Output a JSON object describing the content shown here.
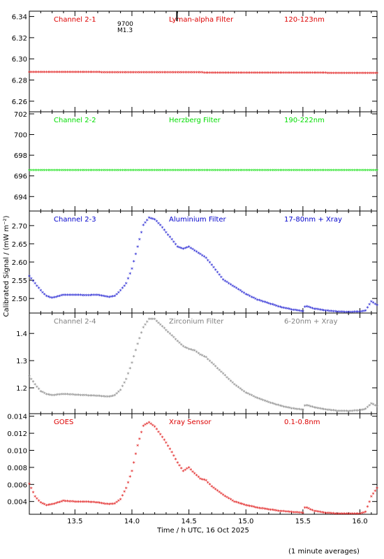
{
  "chart_data": {
    "type": "scatter",
    "xlabel": "Time / h UTC, 16 Oct 2025",
    "ylabel": "Calibrated Signal / (mW m⁻²)",
    "footnote": "(1 minute averages)",
    "xlim": [
      13.1,
      16.15
    ],
    "xticks": [
      13.5,
      14.0,
      14.5,
      15.0,
      15.5,
      16.0
    ],
    "xtick_labels": [
      "13.5",
      "14.0",
      "14.5",
      "15.0",
      "15.5",
      "16.0"
    ],
    "flare_marker": {
      "x": 14.15,
      "labels": [
        "9700",
        "M1.3"
      ]
    },
    "panels": [
      {
        "channel": "Channel 2-1",
        "filter": "Lyman-alpha Filter",
        "band": "120-123nm",
        "color": "#dd0000",
        "ylim": [
          6.25,
          6.345
        ],
        "yticks": [
          6.26,
          6.28,
          6.3,
          6.32,
          6.34
        ],
        "ytick_labels": [
          "6.26",
          "6.28",
          "6.30",
          "6.32",
          "6.34"
        ],
        "x": [
          13.1,
          13.5,
          14.0,
          14.5,
          15.0,
          15.5,
          16.0,
          16.15
        ],
        "y": [
          6.287,
          6.287,
          6.2865,
          6.2865,
          6.2863,
          6.2862,
          6.286,
          6.286
        ]
      },
      {
        "channel": "Channel 2-2",
        "filter": "Herzberg Filter",
        "band": "190-222nm",
        "color": "#00dd00",
        "ylim": [
          692.6,
          702.2
        ],
        "yticks": [
          694,
          696,
          698,
          700,
          702
        ],
        "ytick_labels": [
          "694",
          "696",
          "698",
          "700",
          "702"
        ],
        "x": [
          13.1,
          13.5,
          14.0,
          14.5,
          15.0,
          15.5,
          16.0,
          16.15
        ],
        "y": [
          696.5,
          696.5,
          696.5,
          696.5,
          696.5,
          696.5,
          696.5,
          696.5
        ]
      },
      {
        "channel": "Channel 2-3",
        "filter": "Aluminium Filter",
        "band": "17-80nm + Xray",
        "color": "#0000cc",
        "ylim": [
          2.46,
          2.74
        ],
        "yticks": [
          2.5,
          2.55,
          2.6,
          2.65,
          2.7
        ],
        "ytick_labels": [
          "2.50",
          "2.55",
          "2.60",
          "2.65",
          "2.70"
        ],
        "x": [
          13.1,
          13.15,
          13.2,
          13.25,
          13.3,
          13.4,
          13.5,
          13.6,
          13.7,
          13.8,
          13.85,
          13.9,
          13.95,
          14.0,
          14.05,
          14.1,
          14.15,
          14.2,
          14.25,
          14.3,
          14.35,
          14.4,
          14.45,
          14.5,
          14.55,
          14.6,
          14.65,
          14.7,
          14.75,
          14.8,
          14.9,
          15.0,
          15.1,
          15.2,
          15.3,
          15.4,
          15.5,
          15.52,
          15.6,
          15.7,
          15.8,
          15.9,
          16.0,
          16.05,
          16.1,
          16.15
        ],
        "y": [
          2.56,
          2.54,
          2.52,
          2.505,
          2.5,
          2.508,
          2.508,
          2.507,
          2.508,
          2.502,
          2.505,
          2.52,
          2.54,
          2.58,
          2.64,
          2.7,
          2.72,
          2.715,
          2.7,
          2.68,
          2.66,
          2.64,
          2.635,
          2.64,
          2.63,
          2.62,
          2.61,
          2.59,
          2.57,
          2.55,
          2.53,
          2.51,
          2.495,
          2.485,
          2.475,
          2.468,
          2.463,
          2.478,
          2.47,
          2.465,
          2.462,
          2.461,
          2.462,
          2.465,
          2.49,
          2.48
        ]
      },
      {
        "channel": "Channel 2-4",
        "filter": "Zirconium Filter",
        "band": "6-20nm + Xray",
        "color": "#808080",
        "ylim": [
          1.105,
          1.475
        ],
        "yticks": [
          1.2,
          1.3,
          1.4
        ],
        "ytick_labels": [
          "1.2",
          "1.3",
          "1.4"
        ],
        "x": [
          13.1,
          13.15,
          13.2,
          13.25,
          13.3,
          13.4,
          13.5,
          13.6,
          13.7,
          13.8,
          13.85,
          13.9,
          13.95,
          14.0,
          14.05,
          14.1,
          14.15,
          14.2,
          14.25,
          14.3,
          14.35,
          14.4,
          14.45,
          14.5,
          14.55,
          14.6,
          14.65,
          14.7,
          14.75,
          14.8,
          14.9,
          15.0,
          15.1,
          15.2,
          15.3,
          15.4,
          15.5,
          15.52,
          15.6,
          15.7,
          15.8,
          15.9,
          16.0,
          16.05,
          16.1,
          16.15
        ],
        "y": [
          1.24,
          1.21,
          1.185,
          1.175,
          1.17,
          1.175,
          1.172,
          1.17,
          1.168,
          1.165,
          1.17,
          1.19,
          1.23,
          1.29,
          1.36,
          1.42,
          1.45,
          1.45,
          1.43,
          1.41,
          1.39,
          1.37,
          1.35,
          1.34,
          1.335,
          1.32,
          1.31,
          1.29,
          1.27,
          1.25,
          1.21,
          1.18,
          1.16,
          1.145,
          1.132,
          1.122,
          1.117,
          1.135,
          1.126,
          1.118,
          1.113,
          1.112,
          1.115,
          1.12,
          1.14,
          1.13
        ]
      },
      {
        "channel": "GOES",
        "filter": "Xray Sensor",
        "band": "0.1-0.8nm",
        "color": "#dd0000",
        "ylim": [
          0.0025,
          0.0143
        ],
        "yticks": [
          0.004,
          0.006,
          0.008,
          0.01,
          0.012,
          0.014
        ],
        "ytick_labels": [
          "0.004",
          "0.006",
          "0.008",
          "0.010",
          "0.012",
          "0.014"
        ],
        "x": [
          13.1,
          13.15,
          13.2,
          13.25,
          13.3,
          13.4,
          13.5,
          13.6,
          13.7,
          13.8,
          13.85,
          13.9,
          13.95,
          14.0,
          14.05,
          14.1,
          14.15,
          14.2,
          14.25,
          14.3,
          14.35,
          14.4,
          14.45,
          14.5,
          14.55,
          14.6,
          14.65,
          14.7,
          14.75,
          14.8,
          14.9,
          15.0,
          15.1,
          15.2,
          15.3,
          15.4,
          15.5,
          15.52,
          15.6,
          15.7,
          15.8,
          15.9,
          16.0,
          16.05,
          16.1,
          16.15
        ],
        "y": [
          0.006,
          0.0045,
          0.0038,
          0.0035,
          0.0036,
          0.004,
          0.0039,
          0.0039,
          0.0038,
          0.0036,
          0.0037,
          0.0042,
          0.0055,
          0.0075,
          0.0105,
          0.0128,
          0.0132,
          0.0127,
          0.0118,
          0.0108,
          0.0097,
          0.0085,
          0.0075,
          0.0079,
          0.0072,
          0.0066,
          0.0064,
          0.0057,
          0.0052,
          0.0047,
          0.0039,
          0.0035,
          0.0032,
          0.003,
          0.0028,
          0.0027,
          0.0026,
          0.0033,
          0.0028,
          0.0026,
          0.0025,
          0.0025,
          0.0025,
          0.0027,
          0.0045,
          0.0055
        ]
      }
    ]
  }
}
